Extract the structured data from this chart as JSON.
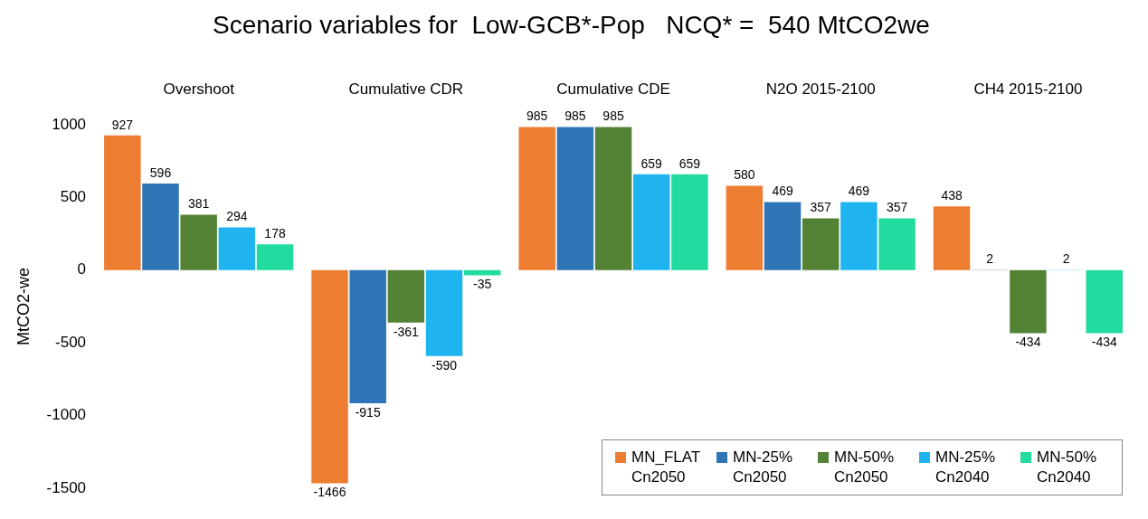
{
  "chart_data": {
    "type": "bar",
    "title": "Scenario variables for  Low-GCB*-Pop   NCQ* =  540 MtCO2we",
    "ylabel": "MtCO2-we",
    "categories": [
      "Overshoot",
      "Cumulative CDR",
      "Cumulative CDE",
      "N2O 2015-2100",
      "CH4 2015-2100"
    ],
    "series": [
      {
        "name": "MN_FLAT Cn2050",
        "color": "#ed7d31",
        "values": [
          927,
          -1466,
          985,
          580,
          438
        ]
      },
      {
        "name": "MN-25% Cn2050",
        "color": "#2e75b6",
        "values": [
          596,
          -915,
          985,
          469,
          2
        ]
      },
      {
        "name": "MN-50% Cn2050",
        "color": "#548235",
        "values": [
          381,
          -361,
          985,
          357,
          -434
        ]
      },
      {
        "name": "MN-25% Cn2040",
        "color": "#1fb4f0",
        "values": [
          294,
          -590,
          659,
          469,
          2
        ]
      },
      {
        "name": "MN-50% Cn2040",
        "color": "#22dba0",
        "values": [
          178,
          -35,
          659,
          357,
          -434
        ]
      }
    ],
    "ylim": [
      -1500,
      1000
    ],
    "yticks": [
      -1500,
      -1000,
      -500,
      0,
      500,
      1000
    ],
    "grid": false,
    "legend": "bottom right",
    "data_labels": true
  }
}
